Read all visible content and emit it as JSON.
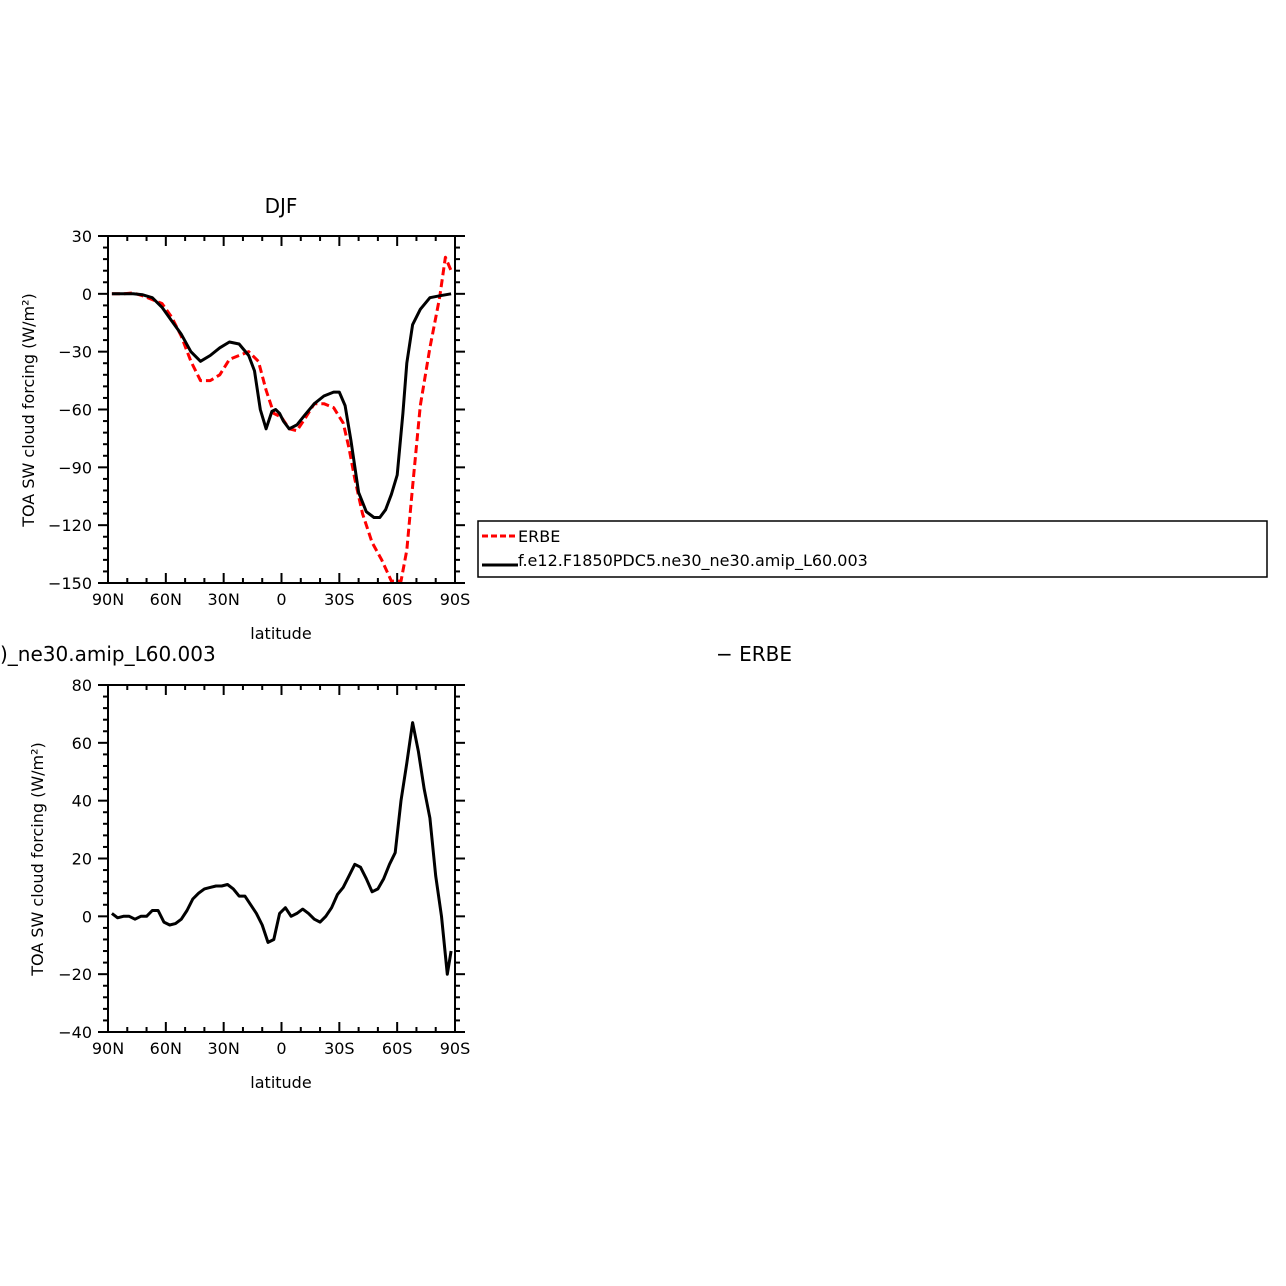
{
  "colors": {
    "erbe": "#ff0000",
    "model": "#000000",
    "frame": "#000000"
  },
  "chart_data": [
    {
      "type": "line",
      "title": "DJF",
      "xlabel": "latitude",
      "ylabel": "TOA SW cloud forcing (W/m²)",
      "xlim": [
        -90,
        90
      ],
      "ylim": [
        -150,
        30
      ],
      "xticks": [
        -90,
        -60,
        -30,
        0,
        30,
        60,
        90
      ],
      "xtick_labels": [
        "90N",
        "60N",
        "30N",
        "0",
        "30S",
        "60S",
        "90S"
      ],
      "yticks": [
        30,
        0,
        -30,
        -60,
        -90,
        -120,
        -150
      ],
      "ytick_labels": [
        "30",
        "0",
        "−30",
        "−60",
        "−90",
        "−120",
        "−150"
      ],
      "legend": {
        "position": "right",
        "entries": [
          "ERBE",
          "f.e12.F1850PDC5.ne30_ne30.amip_L60.003"
        ]
      },
      "series": [
        {
          "name": "ERBE",
          "style": "dashed",
          "color": "#ff0000",
          "x": [
            -88,
            -82,
            -77,
            -72,
            -67,
            -62,
            -57,
            -52,
            -47,
            -42,
            -37,
            -32,
            -27,
            -22,
            -17,
            -12,
            -8,
            -4,
            0,
            4,
            8,
            12,
            17,
            22,
            27,
            32,
            35,
            38,
            42,
            47,
            52,
            57,
            62,
            65,
            68,
            72,
            77,
            82,
            85,
            88
          ],
          "y": [
            0,
            0,
            0.5,
            -1,
            -3,
            -5,
            -12,
            -22,
            -35,
            -45,
            -45,
            -42,
            -34,
            -32,
            -30,
            -35,
            -50,
            -62,
            -64,
            -70,
            -71,
            -65,
            -57,
            -57,
            -59,
            -67,
            -80,
            -96,
            -114,
            -129,
            -138,
            -149,
            -149,
            -133,
            -100,
            -58,
            -28,
            -2,
            19,
            12
          ]
        },
        {
          "name": "f.e12.F1850PDC5.ne30_ne30.amip_L60.003",
          "style": "solid",
          "color": "#000000",
          "x": [
            -88,
            -82,
            -77,
            -72,
            -67,
            -62,
            -57,
            -52,
            -47,
            -42,
            -37,
            -32,
            -27,
            -22,
            -17,
            -14,
            -11,
            -8,
            -5,
            -3,
            -1,
            1,
            4,
            8,
            12,
            17,
            22,
            27,
            30,
            33,
            36,
            40,
            44,
            48,
            51,
            54,
            57,
            60,
            63,
            65,
            68,
            72,
            77,
            82,
            88
          ],
          "y": [
            0,
            0,
            0,
            -0.5,
            -2,
            -7,
            -14,
            -21,
            -30,
            -35,
            -32,
            -28,
            -25,
            -26,
            -32,
            -40,
            -60,
            -70,
            -61,
            -60,
            -62,
            -66,
            -70,
            -68,
            -63,
            -57,
            -53,
            -51,
            -51,
            -58,
            -76,
            -103,
            -113,
            -116,
            -116,
            -112,
            -104,
            -94,
            -62,
            -36,
            -16,
            -8,
            -2,
            -1,
            0
          ]
        }
      ]
    },
    {
      "type": "line",
      "title": ")_ne30.amip_L60.003",
      "title_right": "− ERBE",
      "xlabel": "latitude",
      "ylabel": "TOA SW cloud forcing (W/m²)",
      "xlim": [
        -90,
        90
      ],
      "ylim": [
        -40,
        80
      ],
      "xticks": [
        -90,
        -60,
        -30,
        0,
        30,
        60,
        90
      ],
      "xtick_labels": [
        "90N",
        "60N",
        "30N",
        "0",
        "30S",
        "60S",
        "90S"
      ],
      "yticks": [
        80,
        60,
        40,
        20,
        0,
        -20,
        -40
      ],
      "ytick_labels": [
        "80",
        "60",
        "40",
        "20",
        "0",
        "−20",
        "−40"
      ],
      "series": [
        {
          "name": "",
          "style": "solid",
          "color": "#000000",
          "x": [
            -88,
            -85,
            -82,
            -79,
            -76,
            -73,
            -70,
            -67,
            -64,
            -61,
            -58,
            -55,
            -52,
            -49,
            -46,
            -43,
            -40,
            -37,
            -34,
            -31,
            -28,
            -25,
            -22,
            -19,
            -16,
            -13,
            -10,
            -7,
            -4,
            -1,
            2,
            5,
            8,
            11,
            14,
            17,
            20,
            23,
            26,
            29,
            32,
            35,
            38,
            41,
            44,
            47,
            50,
            53,
            56,
            59,
            62,
            65,
            68,
            71,
            74,
            77,
            80,
            83,
            86,
            88
          ],
          "y": [
            1,
            -0.5,
            0,
            0,
            -1,
            0,
            0,
            2,
            2,
            -2,
            -3,
            -2.5,
            -1,
            2,
            6,
            8,
            9.5,
            10,
            10.5,
            10.5,
            11,
            9.5,
            7,
            7,
            4,
            1,
            -3,
            -9,
            -8,
            1,
            3,
            0,
            1,
            2.5,
            1,
            -1,
            -2,
            0,
            3,
            7.5,
            10,
            14,
            18,
            17,
            13,
            8.5,
            9.5,
            13,
            18,
            22,
            40,
            53,
            67,
            57,
            44,
            34,
            14,
            0,
            -20,
            -12
          ]
        }
      ]
    }
  ]
}
